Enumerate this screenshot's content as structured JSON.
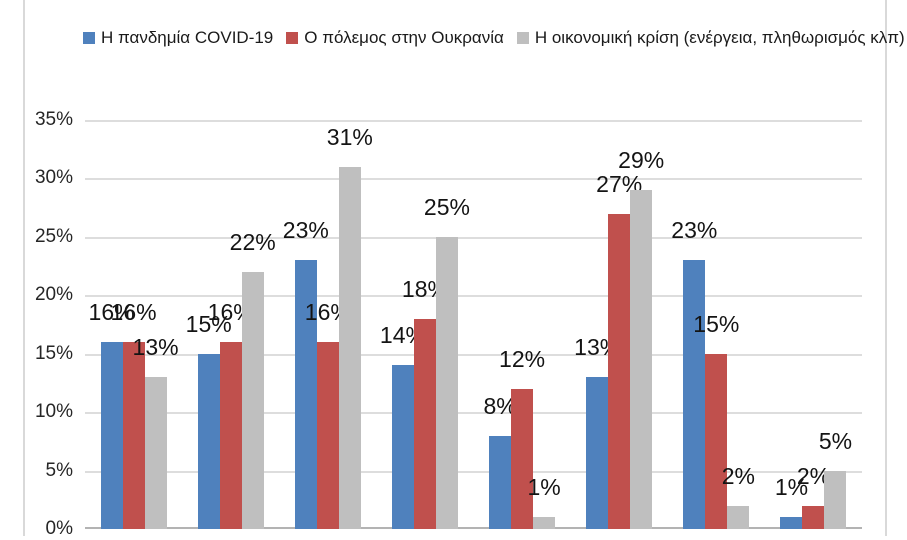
{
  "chart_data": {
    "type": "bar",
    "title": "",
    "categories": [
      "",
      "",
      "",
      "",
      "",
      "",
      "",
      ""
    ],
    "series": [
      {
        "name": "Η πανδημία COVID-19",
        "color": "#4F81BD",
        "values": [
          16,
          15,
          23,
          14,
          8,
          13,
          23,
          1
        ]
      },
      {
        "name": "Ο πόλεμος στην Ουκρανία",
        "color": "#C0504D",
        "values": [
          16,
          16,
          16,
          18,
          12,
          27,
          15,
          2
        ]
      },
      {
        "name": "Η οικονομική κρίση (ενέργεια, πληθωρισμός κλπ)",
        "color": "#BFBFBF",
        "values": [
          13,
          22,
          31,
          25,
          1,
          29,
          2,
          5
        ]
      }
    ],
    "data_label_suffix": "%",
    "y_axis": {
      "min": 0,
      "max": 35,
      "step": 5,
      "ticks": [
        "0%",
        "5%",
        "10%",
        "15%",
        "20%",
        "25%",
        "30%",
        "35%"
      ]
    },
    "x_axis": {
      "tick_labels_visible": false
    },
    "legend_position": "top",
    "grid": true
  },
  "colors": {
    "gridline": "#dddddd",
    "axis_baseline": "#b3b3b3",
    "frame": "#d9d9d9",
    "text": "#1a1a1a"
  }
}
